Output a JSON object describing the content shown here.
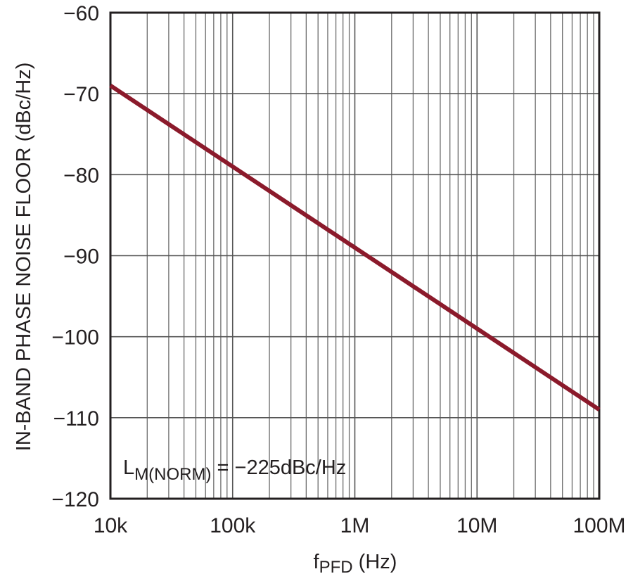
{
  "chart_data": {
    "type": "line",
    "x_scale": "log",
    "y_scale": "linear",
    "xlim": [
      10000,
      100000000
    ],
    "ylim": [
      -120,
      -60
    ],
    "grid": true,
    "x_ticks": [
      10000,
      100000,
      1000000,
      10000000,
      100000000
    ],
    "x_tick_labels": [
      "10k",
      "100k",
      "1M",
      "10M",
      "100M"
    ],
    "y_ticks": [
      -60,
      -70,
      -80,
      -90,
      -100,
      -110,
      -120
    ],
    "y_tick_labels": [
      "−60",
      "−70",
      "−80",
      "−90",
      "−100",
      "−110",
      "−120"
    ],
    "xlabel": {
      "main": "f",
      "sub": "PFD",
      "unit": " (Hz)"
    },
    "ylabel": "IN-BAND PHASE NOISE FLOOR  (dBc/Hz)",
    "annotation": {
      "main": "L",
      "sub": "M(NORM)",
      "rest": " = −225dBc/Hz"
    },
    "series": [
      {
        "color": "#8b1a2b",
        "x": [
          10000,
          100000000
        ],
        "y": [
          -69,
          -109
        ]
      }
    ]
  }
}
